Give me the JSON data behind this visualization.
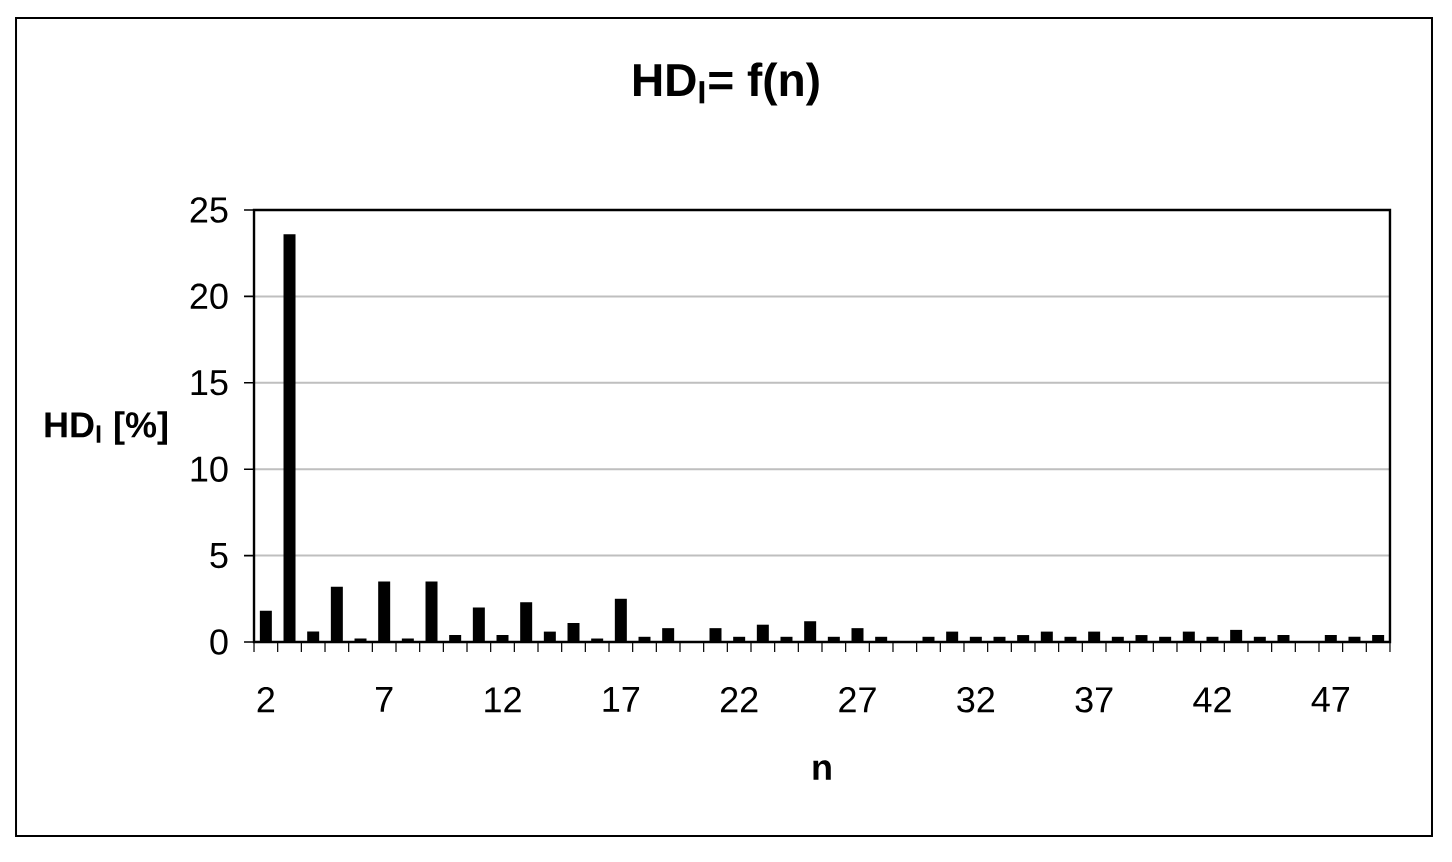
{
  "chart_data": {
    "type": "bar",
    "title": "HD$_{I}$= f(n)",
    "xlabel": "n",
    "ylabel": "HD$_{I}$ [%]",
    "categories": [
      "2",
      null,
      null,
      null,
      null,
      "7",
      null,
      null,
      null,
      null,
      "12",
      null,
      null,
      null,
      null,
      "17",
      null,
      null,
      null,
      null,
      "22",
      null,
      null,
      null,
      null,
      "27",
      null,
      null,
      null,
      null,
      "32",
      null,
      null,
      null,
      null,
      "37",
      null,
      null,
      null,
      null,
      "42",
      null,
      null,
      null,
      null,
      "47",
      null,
      null
    ],
    "values": [
      1.8,
      23.6,
      0.6,
      3.2,
      0.2,
      3.5,
      0.2,
      3.5,
      0.4,
      2.0,
      0.4,
      2.3,
      0.6,
      1.1,
      0.2,
      2.5,
      0.3,
      0.8,
      0,
      0.8,
      0.3,
      1.0,
      0.3,
      1.2,
      0.3,
      0.8,
      0.3,
      0,
      0.3,
      0.6,
      0.3,
      0.3,
      0.4,
      0.6,
      0.3,
      0.6,
      0.3,
      0.4,
      0.3,
      0.6,
      0.3,
      0.7,
      0.3,
      0.4,
      0,
      0.4,
      0.3,
      0.4
    ],
    "color": "#000000",
    "ylim": [
      0,
      25
    ],
    "yticks": [
      0,
      5,
      10,
      15,
      20,
      25
    ],
    "grid": "y"
  }
}
